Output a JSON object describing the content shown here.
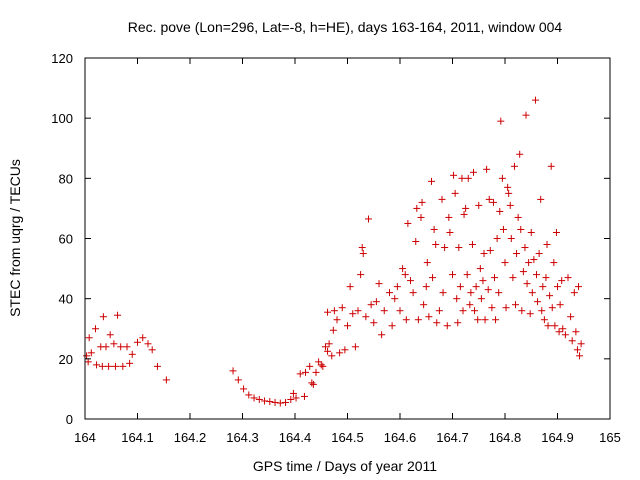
{
  "chart_data": {
    "type": "scatter",
    "title": "Rec. pove (Lon=296, Lat=-8, h=HE), days 163-164, 2011, window 004",
    "xlabel": "GPS time / Days of year 2011",
    "ylabel": "STEC from uqrg / TECUs",
    "xlim": [
      164,
      165
    ],
    "ylim": [
      0,
      120
    ],
    "xticks": [
      "164",
      "164.1",
      "164.2",
      "164.3",
      "164.4",
      "164.5",
      "164.6",
      "164.7",
      "164.8",
      "164.9",
      "165"
    ],
    "yticks": [
      "0",
      "20",
      "40",
      "60",
      "80",
      "100",
      "120"
    ],
    "grid": false,
    "marker": "plus",
    "colors": {
      "marker": "#cc0000",
      "axis": "#000000",
      "background": "#ffffff"
    },
    "series": [
      {
        "points": [
          [
            164.003,
            21
          ],
          [
            164.006,
            19
          ],
          [
            164.008,
            27
          ],
          [
            164.012,
            22
          ],
          [
            164.02,
            30
          ],
          [
            164.022,
            18
          ],
          [
            164.03,
            24
          ],
          [
            164.033,
            17.5
          ],
          [
            164.035,
            34
          ],
          [
            164.04,
            24
          ],
          [
            164.045,
            17.5
          ],
          [
            164.048,
            28
          ],
          [
            164.055,
            25
          ],
          [
            164.058,
            17.5
          ],
          [
            164.062,
            34.5
          ],
          [
            164.068,
            24
          ],
          [
            164.072,
            17.5
          ],
          [
            164.08,
            24
          ],
          [
            164.085,
            18.5
          ],
          [
            164.09,
            21.5
          ],
          [
            164.1,
            25.5
          ],
          [
            164.11,
            27
          ],
          [
            164.12,
            25
          ],
          [
            164.128,
            23
          ],
          [
            164.138,
            17.5
          ],
          [
            164.155,
            13
          ],
          [
            164.282,
            16
          ],
          [
            164.292,
            13
          ],
          [
            164.302,
            10
          ],
          [
            164.312,
            8
          ],
          [
            164.322,
            7
          ],
          [
            164.332,
            6.5
          ],
          [
            164.342,
            6
          ],
          [
            164.352,
            5.8
          ],
          [
            164.362,
            5.5
          ],
          [
            164.372,
            5.3
          ],
          [
            164.382,
            5.5
          ],
          [
            164.392,
            6.5
          ],
          [
            164.397,
            8.5
          ],
          [
            164.402,
            7
          ],
          [
            164.41,
            15
          ],
          [
            164.418,
            7.5
          ],
          [
            164.42,
            15.5
          ],
          [
            164.428,
            17.5
          ],
          [
            164.432,
            12
          ],
          [
            164.435,
            11.5
          ],
          [
            164.44,
            15.5
          ],
          [
            164.445,
            19
          ],
          [
            164.45,
            18
          ],
          [
            164.453,
            17.5
          ],
          [
            164.458,
            24
          ],
          [
            164.462,
            22.5
          ],
          [
            164.465,
            25
          ],
          [
            164.462,
            35.5
          ],
          [
            164.47,
            21
          ],
          [
            164.473,
            29.5
          ],
          [
            164.475,
            36
          ],
          [
            164.48,
            33
          ],
          [
            164.485,
            22
          ],
          [
            164.49,
            37
          ],
          [
            164.495,
            23
          ],
          [
            164.5,
            31
          ],
          [
            164.505,
            44
          ],
          [
            164.51,
            35
          ],
          [
            164.515,
            24
          ],
          [
            164.52,
            36
          ],
          [
            164.525,
            48
          ],
          [
            164.528,
            57
          ],
          [
            164.53,
            55
          ],
          [
            164.535,
            34
          ],
          [
            164.54,
            66.5
          ],
          [
            164.545,
            38
          ],
          [
            164.55,
            32
          ],
          [
            164.555,
            39
          ],
          [
            164.56,
            45
          ],
          [
            164.565,
            28
          ],
          [
            164.57,
            36
          ],
          [
            164.58,
            42
          ],
          [
            164.585,
            31
          ],
          [
            164.59,
            40
          ],
          [
            164.595,
            44
          ],
          [
            164.6,
            36
          ],
          [
            164.605,
            50
          ],
          [
            164.61,
            48
          ],
          [
            164.612,
            33
          ],
          [
            164.615,
            65
          ],
          [
            164.62,
            46
          ],
          [
            164.625,
            42
          ],
          [
            164.63,
            59
          ],
          [
            164.632,
            70
          ],
          [
            164.635,
            33
          ],
          [
            164.64,
            67
          ],
          [
            164.642,
            72
          ],
          [
            164.645,
            38
          ],
          [
            164.65,
            44
          ],
          [
            164.652,
            52
          ],
          [
            164.655,
            34
          ],
          [
            164.66,
            79
          ],
          [
            164.662,
            47
          ],
          [
            164.665,
            63
          ],
          [
            164.668,
            58
          ],
          [
            164.67,
            32
          ],
          [
            164.675,
            36
          ],
          [
            164.68,
            73
          ],
          [
            164.682,
            42
          ],
          [
            164.685,
            57
          ],
          [
            164.69,
            31
          ],
          [
            164.693,
            67
          ],
          [
            164.695,
            62
          ],
          [
            164.7,
            48
          ],
          [
            164.702,
            81
          ],
          [
            164.705,
            75
          ],
          [
            164.708,
            40
          ],
          [
            164.71,
            32
          ],
          [
            164.712,
            57
          ],
          [
            164.715,
            44
          ],
          [
            164.718,
            80
          ],
          [
            164.72,
            36
          ],
          [
            164.722,
            68
          ],
          [
            164.725,
            70
          ],
          [
            164.728,
            48
          ],
          [
            164.73,
            80
          ],
          [
            164.733,
            38
          ],
          [
            164.735,
            42
          ],
          [
            164.738,
            58
          ],
          [
            164.74,
            82
          ],
          [
            164.742,
            36
          ],
          [
            164.745,
            44
          ],
          [
            164.748,
            33
          ],
          [
            164.75,
            71
          ],
          [
            164.753,
            50
          ],
          [
            164.755,
            40
          ],
          [
            164.758,
            46
          ],
          [
            164.76,
            55
          ],
          [
            164.762,
            33
          ],
          [
            164.765,
            83
          ],
          [
            164.768,
            43
          ],
          [
            164.77,
            73
          ],
          [
            164.772,
            56
          ],
          [
            164.775,
            37
          ],
          [
            164.778,
            72
          ],
          [
            164.78,
            47
          ],
          [
            164.782,
            33
          ],
          [
            164.785,
            60
          ],
          [
            164.788,
            42
          ],
          [
            164.79,
            69
          ],
          [
            164.792,
            99
          ],
          [
            164.795,
            80
          ],
          [
            164.797,
            63
          ],
          [
            164.8,
            52
          ],
          [
            164.802,
            37
          ],
          [
            164.805,
            77
          ],
          [
            164.807,
            75
          ],
          [
            164.81,
            71
          ],
          [
            164.812,
            60
          ],
          [
            164.815,
            47
          ],
          [
            164.818,
            84
          ],
          [
            164.82,
            38
          ],
          [
            164.822,
            55
          ],
          [
            164.825,
            67
          ],
          [
            164.828,
            88
          ],
          [
            164.83,
            63
          ],
          [
            164.832,
            36
          ],
          [
            164.835,
            49
          ],
          [
            164.838,
            57
          ],
          [
            164.84,
            101
          ],
          [
            164.842,
            45
          ],
          [
            164.845,
            52
          ],
          [
            164.848,
            35
          ],
          [
            164.85,
            62
          ],
          [
            164.852,
            42
          ],
          [
            164.855,
            53
          ],
          [
            164.858,
            106
          ],
          [
            164.86,
            48
          ],
          [
            164.862,
            39
          ],
          [
            164.865,
            55
          ],
          [
            164.868,
            73
          ],
          [
            164.87,
            36
          ],
          [
            164.872,
            44
          ],
          [
            164.875,
            33
          ],
          [
            164.878,
            47
          ],
          [
            164.88,
            58
          ],
          [
            164.882,
            31
          ],
          [
            164.885,
            41
          ],
          [
            164.888,
            84
          ],
          [
            164.89,
            37
          ],
          [
            164.893,
            52
          ],
          [
            164.895,
            31
          ],
          [
            164.898,
            62
          ],
          [
            164.9,
            44
          ],
          [
            164.903,
            29
          ],
          [
            164.905,
            38
          ],
          [
            164.908,
            46
          ],
          [
            164.91,
            30
          ],
          [
            164.915,
            28
          ],
          [
            164.92,
            47
          ],
          [
            164.925,
            34
          ],
          [
            164.928,
            26
          ],
          [
            164.932,
            42
          ],
          [
            164.935,
            29
          ],
          [
            164.938,
            23
          ],
          [
            164.94,
            44
          ],
          [
            164.942,
            21
          ],
          [
            164.945,
            25
          ]
        ]
      }
    ]
  }
}
